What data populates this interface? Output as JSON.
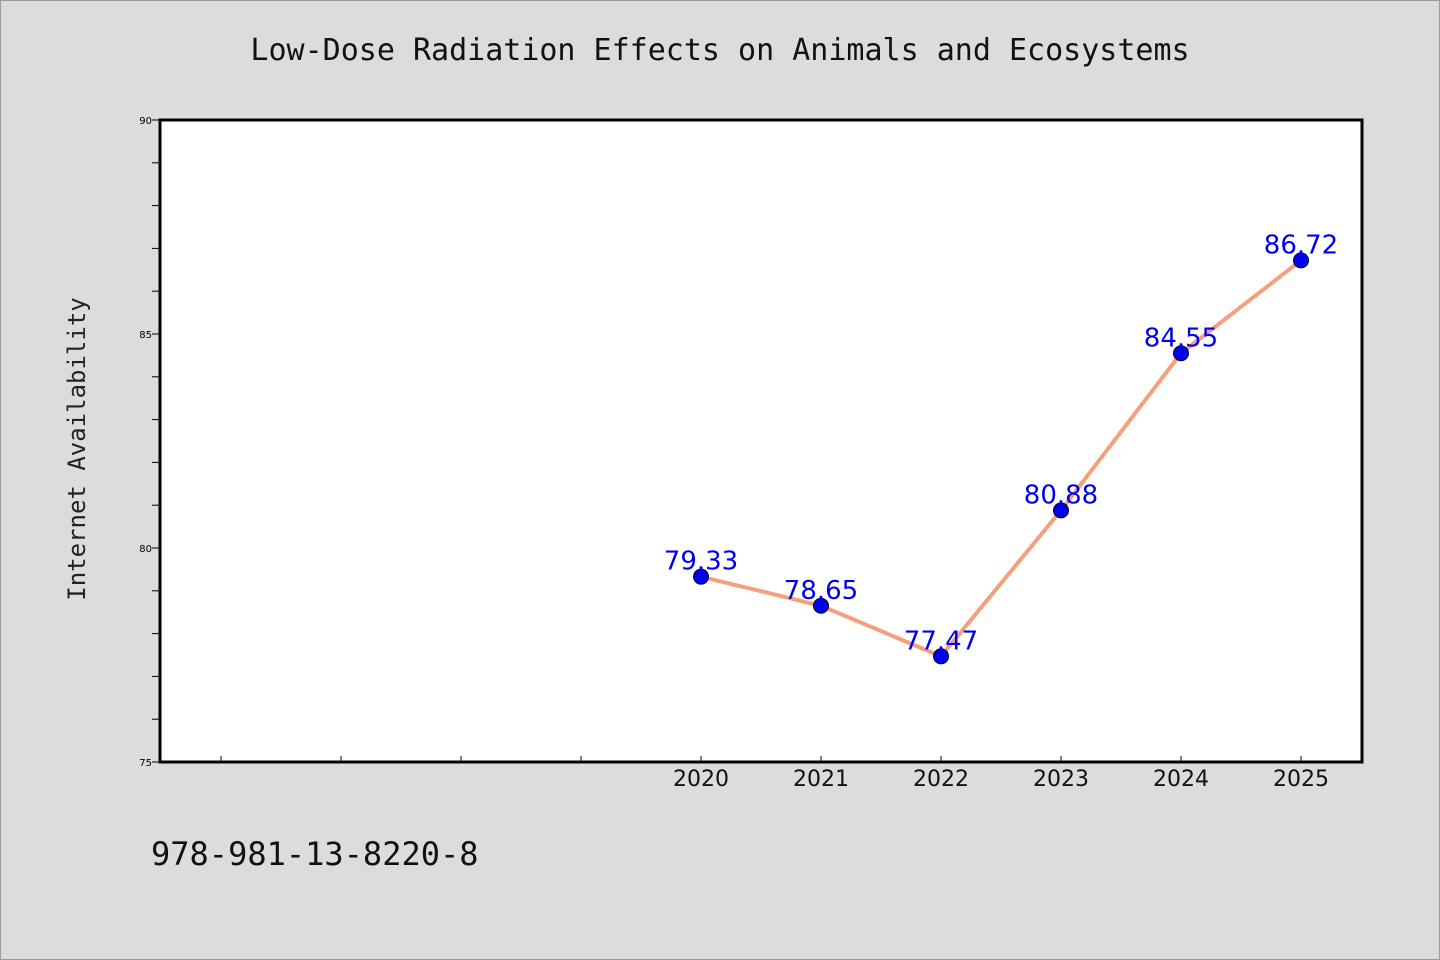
{
  "chart_data": {
    "type": "line",
    "title": "Low-Dose Radiation Effects on Animals and Ecosystems",
    "xlabel": "",
    "ylabel": "Internet Availability",
    "categories": [
      "2020",
      "2021",
      "2022",
      "2023",
      "2024",
      "2025"
    ],
    "series": [
      {
        "values": [
          79.33,
          78.65,
          77.47,
          80.88,
          84.55,
          86.72
        ]
      }
    ],
    "data_labels": [
      "79.33",
      "78.65",
      "77.47",
      "80.88",
      "84.55",
      "86.72"
    ],
    "x_tick_labels": [
      "2020",
      "2021",
      "2022",
      "2023",
      "2024",
      "2025"
    ],
    "y_tick_labels": [
      "75",
      "80",
      "85",
      "90"
    ],
    "ylim": [
      75,
      90
    ],
    "grid": false,
    "legend": "none",
    "line_color": "#f4a07c",
    "marker_color": "#0000ee",
    "label_color": "#0000ee"
  },
  "footer": {
    "isbn": "978-981-13-8220-8"
  }
}
